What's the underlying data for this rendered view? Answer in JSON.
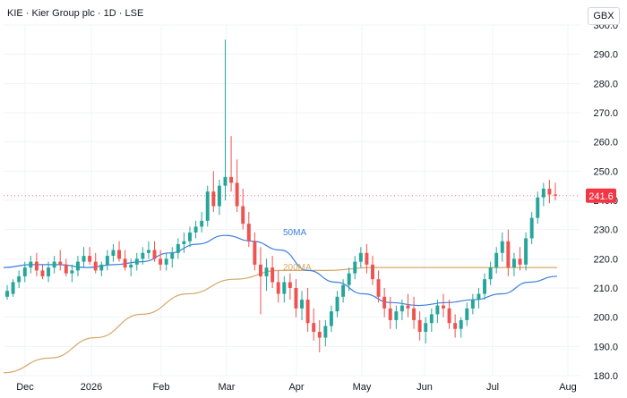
{
  "legend": {
    "ticker": "KIE",
    "name": "Kier Group plc",
    "interval": "1D",
    "exchange": "LSE"
  },
  "currency": "GBX",
  "price_badge": "241.6",
  "ma_labels": {
    "ma50": "50MA",
    "ma200": "200MA"
  },
  "colors": {
    "up": "#26a69a",
    "down": "#ef5350",
    "ma50": "#3d7fe0",
    "ma200": "#d6a86a",
    "grid": "#f0f3fa",
    "badge": "#f23645"
  },
  "chart_data": {
    "type": "candlestick",
    "ylim": [
      180,
      300
    ],
    "y_ticks": [
      180.0,
      190.0,
      200.0,
      210.0,
      220.0,
      230.0,
      240.0,
      250.0,
      260.0,
      270.0,
      280.0,
      290.0,
      300.0
    ],
    "x_ticks": [
      "Dec",
      "2026",
      "Feb",
      "Mar",
      "Apr",
      "May",
      "Jun",
      "Jul",
      "Aug"
    ],
    "last_price": 241.6,
    "ma50_anchor_values": [
      217,
      218,
      218,
      217,
      218,
      219,
      222,
      225,
      228,
      226,
      223,
      216,
      212,
      208,
      205,
      204,
      205,
      206,
      208,
      212,
      214
    ],
    "ma200_anchor_values": [
      181,
      186,
      193,
      201,
      208,
      213,
      216,
      216,
      217,
      217,
      217,
      217,
      217
    ],
    "candles_ohlc": [
      [
        207,
        211,
        206,
        209
      ],
      [
        208,
        213,
        207,
        212
      ],
      [
        212,
        216,
        210,
        214
      ],
      [
        214,
        219,
        212,
        217
      ],
      [
        217,
        221,
        215,
        219
      ],
      [
        219,
        222,
        214,
        216
      ],
      [
        216,
        218,
        213,
        214
      ],
      [
        214,
        219,
        212,
        217
      ],
      [
        217,
        221,
        215,
        219
      ],
      [
        219,
        223,
        216,
        218
      ],
      [
        218,
        220,
        214,
        215
      ],
      [
        215,
        218,
        212,
        216
      ],
      [
        216,
        221,
        214,
        219
      ],
      [
        219,
        224,
        217,
        221
      ],
      [
        221,
        224,
        218,
        219
      ],
      [
        219,
        222,
        215,
        216
      ],
      [
        216,
        219,
        214,
        218
      ],
      [
        218,
        223,
        216,
        221
      ],
      [
        221,
        225,
        219,
        223
      ],
      [
        223,
        226,
        219,
        220
      ],
      [
        220,
        223,
        216,
        217
      ],
      [
        217,
        220,
        214,
        218
      ],
      [
        218,
        222,
        216,
        220
      ],
      [
        220,
        224,
        218,
        222
      ],
      [
        222,
        226,
        220,
        223
      ],
      [
        223,
        226,
        219,
        220
      ],
      [
        220,
        223,
        216,
        218
      ],
      [
        218,
        222,
        216,
        220
      ],
      [
        220,
        224,
        217,
        222
      ],
      [
        222,
        227,
        220,
        225
      ],
      [
        225,
        229,
        222,
        226
      ],
      [
        226,
        231,
        224,
        229
      ],
      [
        229,
        233,
        227,
        231
      ],
      [
        231,
        236,
        229,
        233
      ],
      [
        233,
        245,
        231,
        243
      ],
      [
        243,
        250,
        236,
        238
      ],
      [
        238,
        247,
        235,
        245
      ],
      [
        245,
        295,
        240,
        248
      ],
      [
        248,
        262,
        243,
        246
      ],
      [
        246,
        254,
        236,
        238
      ],
      [
        238,
        244,
        230,
        232
      ],
      [
        232,
        236,
        224,
        226
      ],
      [
        226,
        229,
        216,
        218
      ],
      [
        218,
        224,
        201,
        214
      ],
      [
        214,
        220,
        209,
        217
      ],
      [
        217,
        221,
        210,
        212
      ],
      [
        212,
        216,
        205,
        208
      ],
      [
        208,
        214,
        205,
        212
      ],
      [
        212,
        215,
        206,
        210
      ],
      [
        210,
        213,
        200,
        203
      ],
      [
        203,
        209,
        199,
        206
      ],
      [
        206,
        210,
        195,
        198
      ],
      [
        198,
        203,
        192,
        195
      ],
      [
        195,
        199,
        188,
        193
      ],
      [
        193,
        199,
        190,
        197
      ],
      [
        197,
        204,
        195,
        202
      ],
      [
        202,
        209,
        200,
        207
      ],
      [
        207,
        213,
        205,
        211
      ],
      [
        211,
        217,
        209,
        215
      ],
      [
        215,
        221,
        213,
        219
      ],
      [
        219,
        224,
        217,
        222
      ],
      [
        222,
        225,
        215,
        218
      ],
      [
        218,
        221,
        211,
        213
      ],
      [
        213,
        216,
        205,
        207
      ],
      [
        207,
        210,
        200,
        203
      ],
      [
        203,
        207,
        196,
        199
      ],
      [
        199,
        204,
        196,
        202
      ],
      [
        202,
        206,
        199,
        204
      ],
      [
        204,
        208,
        200,
        203
      ],
      [
        203,
        207,
        196,
        199
      ],
      [
        199,
        202,
        192,
        195
      ],
      [
        195,
        200,
        191,
        198
      ],
      [
        198,
        203,
        195,
        201
      ],
      [
        201,
        206,
        198,
        204
      ],
      [
        204,
        208,
        200,
        203
      ],
      [
        203,
        206,
        196,
        198
      ],
      [
        198,
        201,
        193,
        196
      ],
      [
        196,
        200,
        193,
        199
      ],
      [
        199,
        205,
        197,
        203
      ],
      [
        203,
        208,
        201,
        206
      ],
      [
        206,
        210,
        203,
        208
      ],
      [
        208,
        215,
        206,
        213
      ],
      [
        213,
        219,
        211,
        217
      ],
      [
        217,
        224,
        215,
        222
      ],
      [
        222,
        229,
        219,
        226
      ],
      [
        226,
        230,
        214,
        217
      ],
      [
        217,
        222,
        214,
        220
      ],
      [
        220,
        224,
        216,
        218
      ],
      [
        218,
        229,
        216,
        227
      ],
      [
        227,
        236,
        225,
        234
      ],
      [
        234,
        243,
        232,
        241
      ],
      [
        241,
        246,
        238,
        244
      ],
      [
        244,
        247,
        239,
        242
      ],
      [
        242,
        246,
        240,
        241.6
      ]
    ]
  }
}
